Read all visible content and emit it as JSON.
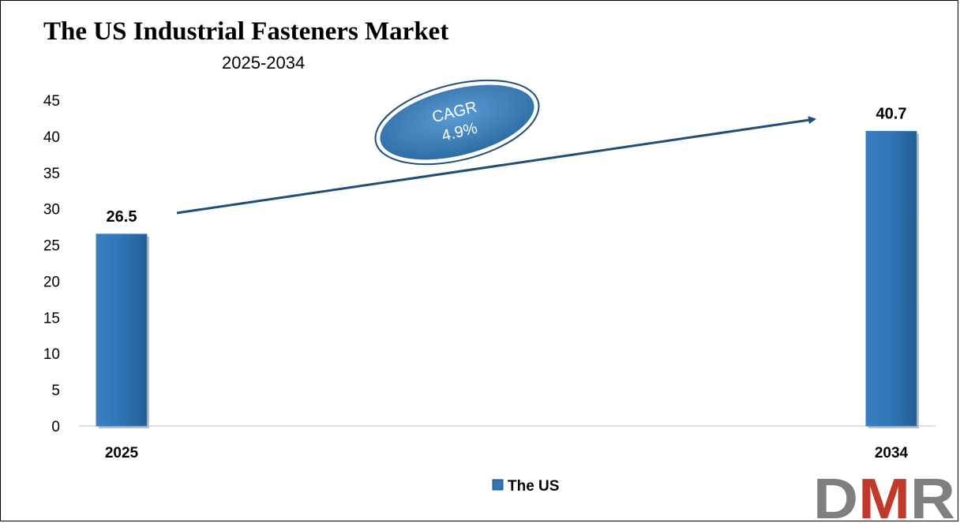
{
  "chart_data": {
    "type": "bar",
    "title": "The US Industrial Fasteners Market",
    "subtitle": "2025-2034",
    "categories": [
      "2025",
      "2034"
    ],
    "series": [
      {
        "name": "The US",
        "values": [
          26.5,
          40.7
        ],
        "color": "#2e75b6"
      }
    ],
    "data_labels": [
      "26.5",
      "40.7"
    ],
    "ylim": [
      0,
      45
    ],
    "yticks": [
      "0",
      "5",
      "10",
      "15",
      "20",
      "25",
      "30",
      "35",
      "40",
      "45"
    ],
    "grid": false,
    "legend_position": "bottom-center",
    "annotation": {
      "label": "CAGR",
      "value": "4.9%"
    }
  },
  "logo": {
    "letters": "DMR",
    "colors": [
      "#7f7f7f",
      "#c0392b",
      "#7f7f7f"
    ]
  }
}
